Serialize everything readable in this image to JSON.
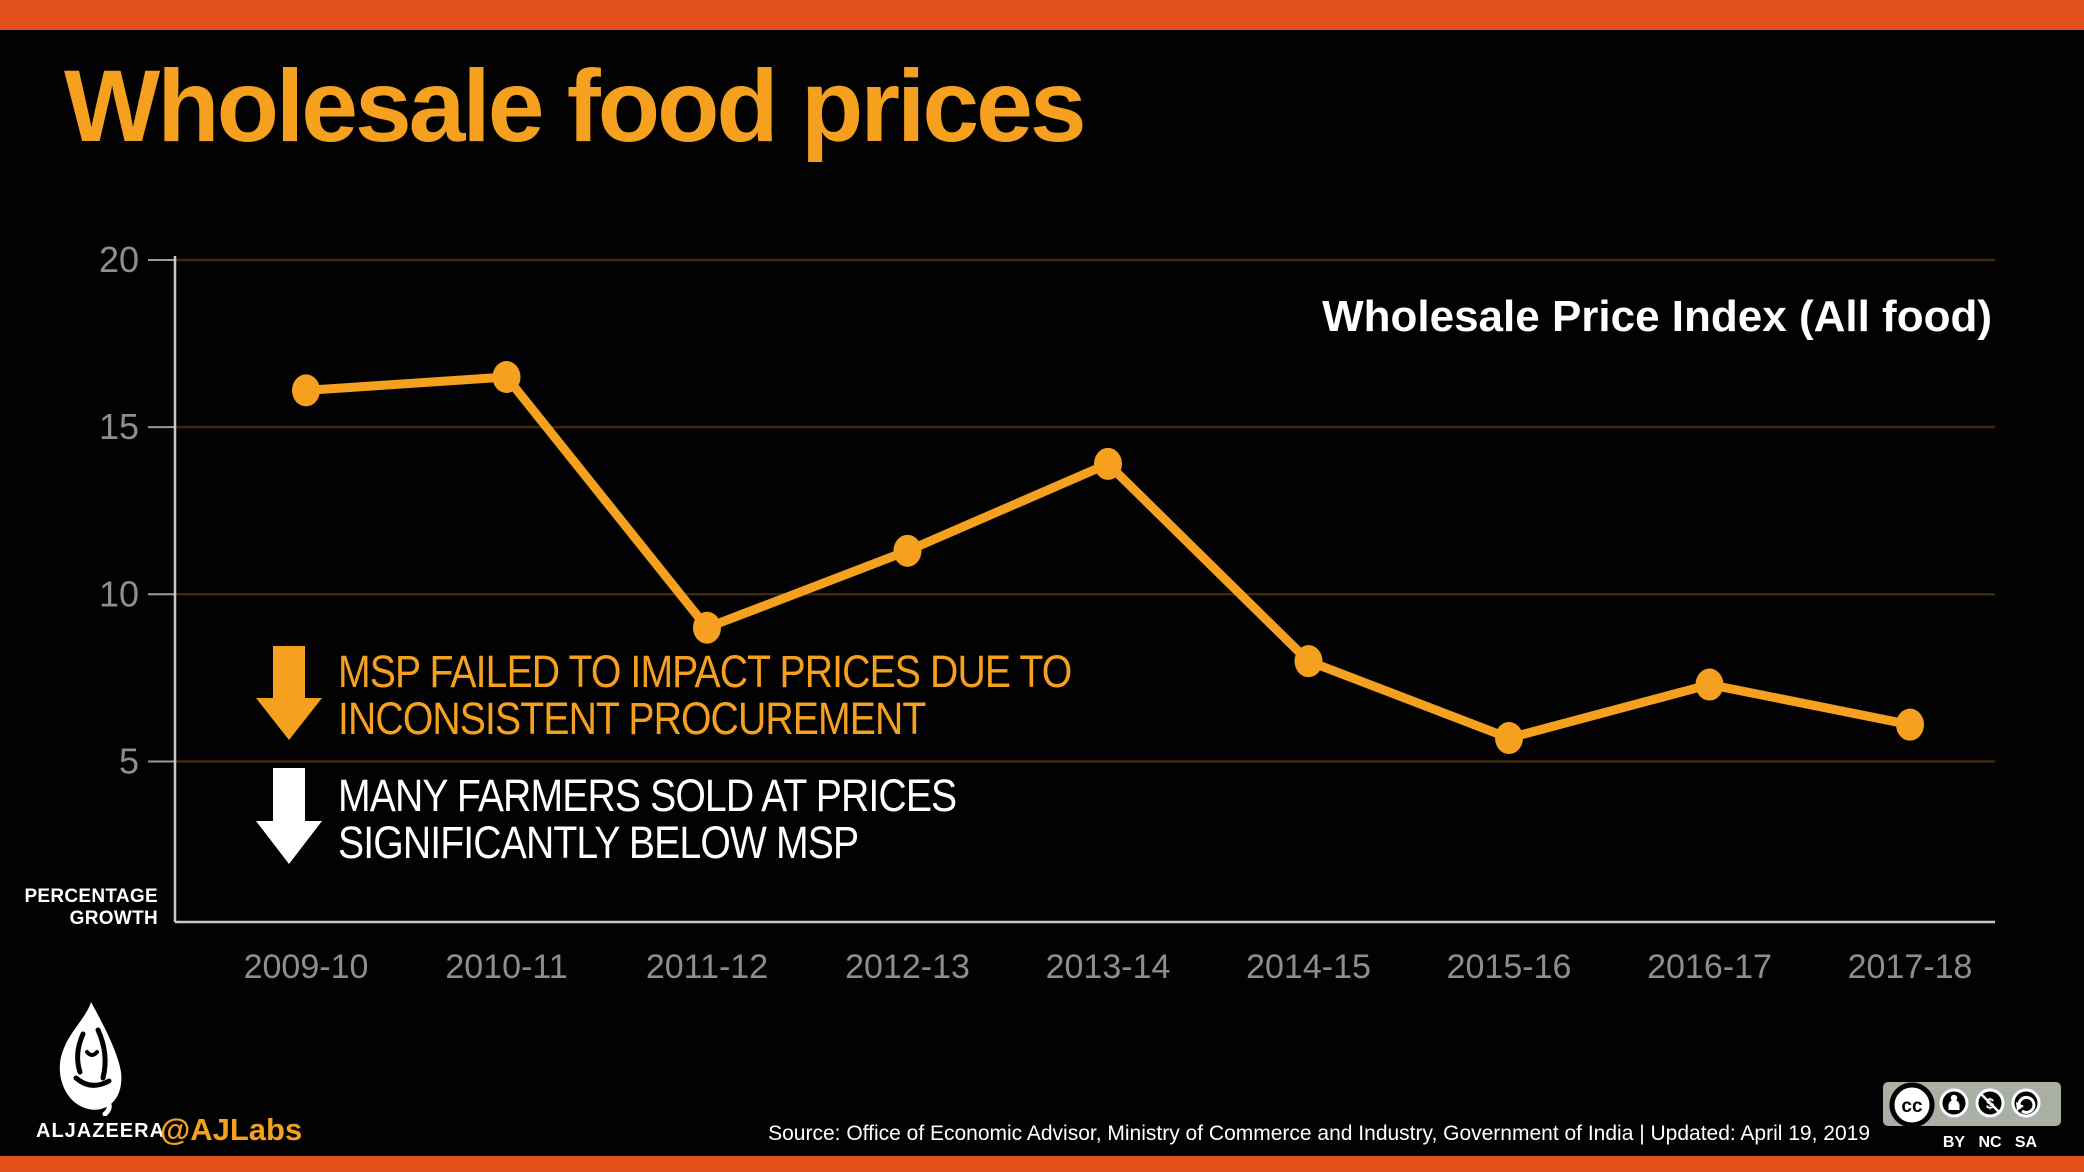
{
  "title": "Wholesale food prices",
  "colors": {
    "accent_orange": "#F5A01E",
    "bar_red_orange": "#E2511B",
    "gridline_brown": "#3D2A0D",
    "axis_gray": "#C8C8C8",
    "tick_label_gray": "#8E8E8E",
    "text_white": "#FFFFFF",
    "background": "#020202",
    "cc_plate": "#A9AFA3"
  },
  "chart_data": {
    "type": "line",
    "series_label": "Wholesale Price Index (All food)",
    "categories": [
      "2009-10",
      "2010-11",
      "2011-12",
      "2012-13",
      "2013-14",
      "2014-15",
      "2015-16",
      "2016-17",
      "2017-18"
    ],
    "values": [
      16.1,
      16.5,
      9.0,
      11.3,
      13.9,
      8.0,
      5.7,
      7.3,
      6.1
    ],
    "title": "Wholesale food prices",
    "xlabel": "",
    "ylabel": "PERCENTAGE GROWTH",
    "yticks": [
      20,
      15,
      10,
      5
    ],
    "ylim": [
      0,
      20
    ],
    "grid": true,
    "legend_position": "top-right",
    "line_color": "#F5A01E",
    "marker": "circle"
  },
  "ylabel_lines": {
    "line1": "PERCENTAGE",
    "line2": "GROWTH"
  },
  "annotations": [
    {
      "arrow": "down-arrow-orange",
      "lines": [
        "MSP FAILED TO IMPACT PRICES DUE TO",
        "INCONSISTENT PROCUREMENT"
      ]
    },
    {
      "arrow": "down-arrow-white",
      "lines": [
        "MANY FARMERS SOLD AT PRICES",
        "SIGNIFICANTLY BELOW MSP"
      ]
    }
  ],
  "footer": {
    "brand": "ALJAZEERA",
    "handle": "@AJLabs",
    "source": "Source: Office of Economic Advisor, Ministry of Commerce and Industry, Government of India |  Updated: April 19, 2019",
    "license_labels": [
      "BY",
      "NC",
      "SA"
    ]
  }
}
